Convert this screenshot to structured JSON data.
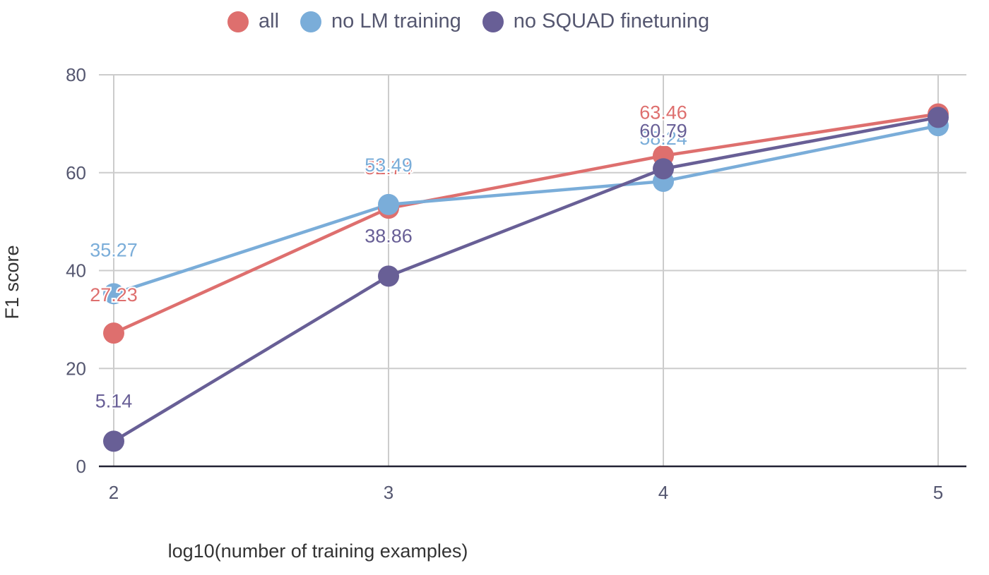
{
  "chart_data": {
    "type": "line",
    "x": [
      2,
      3,
      4,
      5
    ],
    "xlabel": "log10(number of training examples)",
    "ylabel": "F1 score",
    "ylim": [
      0,
      80
    ],
    "yticks": [
      0,
      20,
      40,
      60,
      80
    ],
    "xticks": [
      2,
      3,
      4,
      5
    ],
    "grid": true,
    "legend_position": "top",
    "series": [
      {
        "name": "all",
        "color": "#de6f6e",
        "values": [
          27.23,
          52.74,
          63.46,
          72.0
        ],
        "labels": [
          "27.23",
          "52.74",
          "63.46",
          null
        ]
      },
      {
        "name": "no LM training",
        "color": "#7aadd9",
        "values": [
          35.27,
          53.49,
          58.24,
          69.6
        ],
        "labels": [
          "35.27",
          "53.49",
          "58.24",
          null
        ]
      },
      {
        "name": "no SQUAD finetuning",
        "color": "#685f96",
        "values": [
          5.14,
          38.86,
          60.79,
          71.3
        ],
        "labels": [
          "5.14",
          "38.86",
          "60.79",
          null
        ]
      }
    ]
  }
}
